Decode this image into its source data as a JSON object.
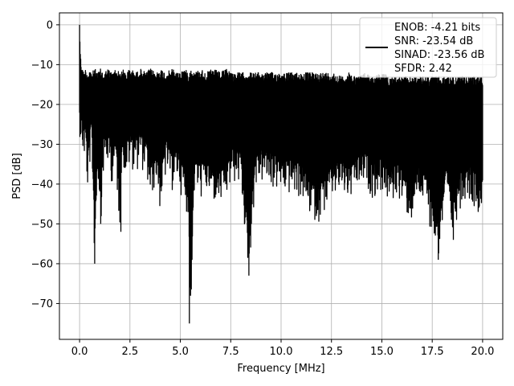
{
  "chart_data": {
    "type": "line",
    "title": "",
    "xlabel": "Frequency [MHz]",
    "ylabel": "PSD [dB]",
    "xlim": [
      -1.0,
      21.0
    ],
    "ylim": [
      -79.0,
      3.0
    ],
    "xticks": [
      0.0,
      2.5,
      5.0,
      7.5,
      10.0,
      12.5,
      15.0,
      17.5,
      20.0
    ],
    "xtick_labels": [
      "0.0",
      "2.5",
      "5.0",
      "7.5",
      "10.0",
      "12.5",
      "15.0",
      "17.5",
      "20.0"
    ],
    "yticks": [
      0,
      -10,
      -20,
      -30,
      -40,
      -50,
      -60,
      -70
    ],
    "ytick_labels": [
      "0",
      "−10",
      "−20",
      "−30",
      "−40",
      "−50",
      "−60",
      "−70"
    ],
    "grid": true,
    "legend_position": "top-right",
    "series": [
      {
        "color": "#000000",
        "legend_lines": [
          "ENOB: -4.21 bits",
          "SNR: -23.54 dB",
          "SINAD: -23.56 dB",
          "SFDR: 2.42"
        ],
        "note_envelope": "dense noise floor; upper envelope approx -10 to -13 dB, lower envelope approx -32 to -45 dB",
        "x": [
          0.0,
          0.02,
          0.05,
          0.1,
          0.2,
          0.3,
          0.4,
          0.5,
          0.6,
          0.75,
          0.9,
          1.05,
          1.2,
          1.4,
          1.6,
          1.8,
          2.0,
          2.1,
          2.3,
          2.5,
          2.8,
          3.0,
          3.3,
          3.5,
          3.8,
          4.0,
          4.3,
          4.6,
          4.9,
          5.2,
          5.4,
          5.5,
          5.7,
          6.0,
          6.3,
          6.6,
          7.0,
          7.3,
          7.6,
          8.0,
          8.4,
          8.7,
          9.0,
          9.4,
          9.8,
          10.2,
          10.6,
          11.0,
          11.4,
          11.8,
          12.2,
          12.6,
          13.0,
          13.4,
          13.8,
          14.2,
          14.6,
          15.0,
          15.4,
          15.8,
          16.2,
          16.5,
          16.8,
          17.2,
          17.8,
          18.2,
          18.5,
          18.8,
          19.2,
          19.6,
          20.0
        ],
        "y_max": [
          0,
          -3,
          -8,
          -10,
          -12,
          -11,
          -12,
          -11,
          -12,
          -11,
          -12,
          -11,
          -12,
          -11,
          -12,
          -11,
          -12,
          -11,
          -12,
          -11,
          -12,
          -11,
          -12,
          -11,
          -12,
          -11,
          -12,
          -11,
          -12,
          -11,
          -12,
          -11,
          -12,
          -11,
          -12,
          -11,
          -12,
          -11,
          -12,
          -12,
          -12,
          -12,
          -12,
          -12,
          -12,
          -12,
          -12,
          -12,
          -12,
          -12,
          -12,
          -12,
          -13,
          -12,
          -13,
          -12,
          -13,
          -12,
          -13,
          -13,
          -13,
          -13,
          -13,
          -13,
          -13,
          -13,
          -13,
          -13,
          -13,
          -13,
          -13
        ],
        "y_min": [
          -30,
          -28,
          -30,
          -32,
          -35,
          -34,
          -43,
          -36,
          -33,
          -60,
          -38,
          -50,
          -37,
          -36,
          -40,
          -38,
          -52,
          -35,
          -39,
          -36,
          -37,
          -36,
          -38,
          -45,
          -40,
          -47,
          -38,
          -42,
          -40,
          -46,
          -48,
          -75,
          -42,
          -44,
          -43,
          -45,
          -46,
          -44,
          -40,
          -41,
          -63,
          -42,
          -40,
          -41,
          -42,
          -43,
          -43,
          -44,
          -48,
          -50,
          -47,
          -44,
          -43,
          -45,
          -42,
          -41,
          -44,
          -42,
          -46,
          -43,
          -48,
          -50,
          -44,
          -47,
          -59,
          -45,
          -54,
          -47,
          -43,
          -46,
          -48
        ],
        "peaks": [
          {
            "x": 0.0,
            "y": 0
          },
          {
            "x": 0.75,
            "y": -60
          },
          {
            "x": 1.05,
            "y": -50
          },
          {
            "x": 2.05,
            "y": -52
          },
          {
            "x": 5.45,
            "y": -75
          },
          {
            "x": 8.4,
            "y": -63
          },
          {
            "x": 17.8,
            "y": -59
          },
          {
            "x": 18.55,
            "y": -54
          }
        ]
      }
    ]
  }
}
